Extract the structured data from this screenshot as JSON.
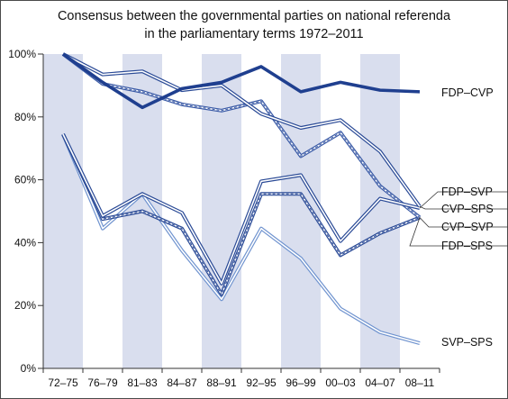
{
  "chart_data": {
    "type": "line",
    "title": "Consensus between the governmental parties on national referenda",
    "subtitle": "in the parliamentary terms 1972–2011",
    "categories": [
      "72–75",
      "76–79",
      "81–83",
      "84–87",
      "88–91",
      "92–95",
      "96–99",
      "00–03",
      "04–07",
      "08–11"
    ],
    "ylim": [
      0,
      100
    ],
    "yticks": [
      0,
      20,
      40,
      60,
      80,
      100
    ],
    "ytick_labels": [
      "0%",
      "20%",
      "40%",
      "60%",
      "80%",
      "100%"
    ],
    "shaded_bands": "alternating terms (72–75, 81–83, 88–91, 96–99, 04–07)",
    "legend": "labels at right end of lines",
    "series": [
      {
        "name": "FDP–CVP",
        "color": "#1f3f8f",
        "style": "thick",
        "values": [
          100,
          91,
          83,
          89,
          91,
          96,
          88,
          91,
          88.5,
          88
        ]
      },
      {
        "name": "CVP–SPS",
        "color": "#2a4a96",
        "style": "double",
        "values": [
          100,
          93.5,
          94.5,
          88.5,
          90,
          81,
          76.5,
          79,
          69,
          51.5
        ]
      },
      {
        "name": "FDP–SVP",
        "color": "#2a4a96",
        "style": "double",
        "values": [
          74.5,
          48.5,
          55.5,
          49.5,
          27,
          59.5,
          61.5,
          40.5,
          54,
          51
        ]
      },
      {
        "name": "CVP–SVP",
        "color": "#3a5aa6",
        "style": "dashed-double",
        "values": [
          100,
          90.5,
          88,
          84,
          82,
          85,
          67.5,
          75,
          58,
          48
        ]
      },
      {
        "name": "FDP–SPS",
        "color": "#2a4a96",
        "style": "dashed-double",
        "values": [
          74.5,
          47.5,
          50,
          44.5,
          23.5,
          55.5,
          55.5,
          36,
          43,
          48
        ]
      },
      {
        "name": "SVP–SPS",
        "color": "#6f93cf",
        "style": "light-double",
        "values": [
          74.5,
          44.5,
          55.5,
          37.5,
          22,
          44.5,
          35,
          19,
          11.5,
          8
        ]
      }
    ]
  }
}
